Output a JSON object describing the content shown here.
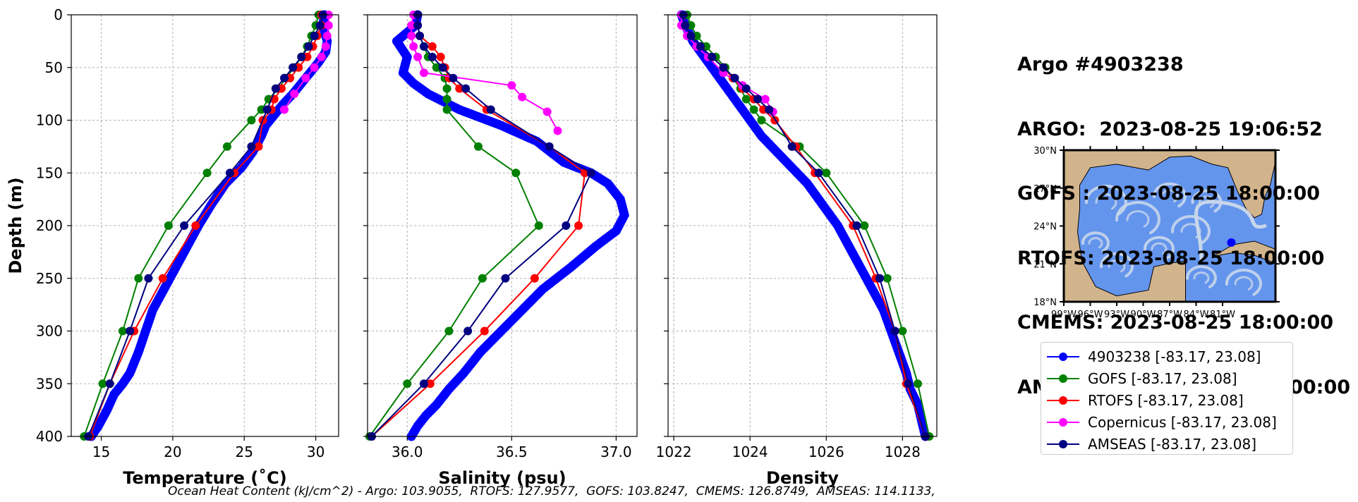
{
  "info": {
    "lines": [
      "Argo #4903238",
      "ARGO:  2023-08-25 19:06:52",
      "GOFS : 2023-08-25 18:00:00",
      "RTOFS: 2023-08-25 18:00:00",
      "CMEMS: 2023-08-25 18:00:00",
      "AMSEAS : 2023-08-25 18:00:00"
    ]
  },
  "ohc_text": "Ocean Heat Content (kJ/cm^2) - Argo: 103.9055,  RTOFS: 127.9577,  GOFS: 103.8247,  CMEMS: 126.8749,  AMSEAS: 114.1133,",
  "legend": [
    {
      "label": "4903238 [-83.17, 23.08]",
      "color": "#0000ff"
    },
    {
      "label": "GOFS [-83.17, 23.08]",
      "color": "#008000"
    },
    {
      "label": "RTOFS [-83.17, 23.08]",
      "color": "#ff0000"
    },
    {
      "label": "Copernicus [-83.17, 23.08]",
      "color": "#ff00ff"
    },
    {
      "label": "AMSEAS [-83.17, 23.08]",
      "color": "#000080"
    }
  ],
  "chart_data": [
    {
      "type": "line",
      "xlabel": "Temperature (˚C)",
      "ylabel": "Depth (m)",
      "xlim": [
        12.9,
        31.6
      ],
      "ylim": [
        400,
        0
      ],
      "xticks": [
        15,
        20,
        25,
        30
      ],
      "yticks": [
        0,
        50,
        100,
        150,
        200,
        250,
        300,
        350,
        400
      ],
      "grid": true,
      "series": [
        {
          "name": "4903238 [-83.17, 23.08]",
          "color": "#0000ff",
          "argo": true,
          "x": [
            30.6,
            30.5,
            30.8,
            30.7,
            30.2,
            29.6,
            29.0,
            28.4,
            27.7,
            27.1,
            26.5,
            26.2,
            25.6,
            24.8,
            23.7,
            22.7,
            21.8,
            21.0,
            20.2,
            19.4,
            18.6,
            18.1,
            17.6,
            17.0,
            16.5,
            15.9,
            15.4,
            14.8,
            14.3
          ],
          "y": [
            0,
            10,
            25,
            35,
            45,
            55,
            65,
            75,
            85,
            95,
            105,
            115,
            130,
            145,
            160,
            180,
            200,
            220,
            240,
            260,
            280,
            300,
            320,
            340,
            350,
            360,
            375,
            390,
            400
          ]
        },
        {
          "name": "GOFS [-83.17, 23.08]",
          "color": "#008000",
          "x": [
            30.2,
            30.0,
            29.7,
            29.4,
            29.0,
            28.5,
            27.9,
            27.4,
            26.7,
            26.2,
            25.5,
            23.8,
            22.4,
            19.7,
            17.6,
            16.5,
            15.1,
            13.8
          ],
          "y": [
            0,
            10,
            20,
            30,
            40,
            50,
            60,
            70,
            80,
            90,
            100,
            125,
            150,
            200,
            250,
            300,
            350,
            400
          ]
        },
        {
          "name": "RTOFS [-83.17, 23.08]",
          "color": "#ff0000",
          "x": [
            30.4,
            30.4,
            30.1,
            29.8,
            29.4,
            28.8,
            28.2,
            27.6,
            27.1,
            26.9,
            26.3,
            26.0,
            24.3,
            21.6,
            19.3,
            17.3,
            15.6,
            14.2
          ],
          "y": [
            0,
            10,
            20,
            30,
            40,
            50,
            60,
            70,
            80,
            90,
            100,
            125,
            150,
            200,
            250,
            300,
            350,
            400
          ]
        },
        {
          "name": "Copernicus [-83.17, 23.08]",
          "color": "#ff00ff",
          "x": [
            30.9,
            30.9,
            30.8,
            30.7,
            30.4,
            29.9,
            29.3,
            28.5,
            27.8
          ],
          "y": [
            0,
            10,
            20,
            30,
            40,
            50,
            60,
            75,
            90
          ]
        },
        {
          "name": "AMSEAS [-83.17, 23.08]",
          "color": "#000080",
          "x": [
            30.5,
            30.3,
            29.9,
            29.5,
            29.0,
            28.4,
            27.8,
            27.2,
            26.6,
            25.5,
            24.0,
            20.8,
            18.3,
            17.0,
            15.6,
            14.1
          ],
          "y": [
            0,
            10,
            20,
            30,
            40,
            50,
            60,
            70,
            90,
            125,
            150,
            200,
            250,
            300,
            350,
            400
          ]
        }
      ]
    },
    {
      "type": "line",
      "xlabel": "Salinity (psu)",
      "ylabel": "",
      "xlim": [
        35.81,
        37.1
      ],
      "ylim": [
        400,
        0
      ],
      "xticks": [
        36.0,
        36.5,
        37.0
      ],
      "yticks": [
        0,
        50,
        100,
        150,
        200,
        250,
        300,
        350,
        400
      ],
      "grid": true,
      "series": [
        {
          "name": "4903238 [-83.17, 23.08]",
          "color": "#0000ff",
          "argo": true,
          "x": [
            36.05,
            36.04,
            35.95,
            36.0,
            35.98,
            36.03,
            36.1,
            36.25,
            36.45,
            36.62,
            36.75,
            36.88,
            36.96,
            37.02,
            37.04,
            37.0,
            36.9,
            36.78,
            36.65,
            36.55,
            36.45,
            36.35,
            36.27,
            36.2,
            36.14,
            36.09,
            36.05,
            36.02
          ],
          "y": [
            0,
            10,
            25,
            40,
            55,
            65,
            75,
            90,
            105,
            120,
            140,
            150,
            160,
            175,
            190,
            205,
            220,
            240,
            260,
            280,
            300,
            320,
            340,
            355,
            370,
            380,
            390,
            400
          ]
        },
        {
          "name": "GOFS [-83.17, 23.08]",
          "color": "#008000",
          "x": [
            36.05,
            36.05,
            36.06,
            36.08,
            36.1,
            36.14,
            36.18,
            36.19,
            36.19,
            36.19,
            36.34,
            36.52,
            36.63,
            36.36,
            36.2,
            36.0,
            35.82
          ],
          "y": [
            0,
            10,
            20,
            30,
            40,
            50,
            60,
            70,
            80,
            90,
            125,
            150,
            200,
            250,
            300,
            350,
            400
          ]
        },
        {
          "name": "RTOFS [-83.17, 23.08]",
          "color": "#ff0000",
          "x": [
            36.05,
            36.05,
            36.06,
            36.12,
            36.16,
            36.18,
            36.2,
            36.25,
            36.38,
            36.68,
            36.85,
            36.82,
            36.61,
            36.37,
            36.11,
            35.83
          ],
          "y": [
            0,
            10,
            20,
            30,
            40,
            50,
            60,
            70,
            90,
            125,
            150,
            200,
            250,
            300,
            350,
            400
          ]
        },
        {
          "name": "Copernicus [-83.17, 23.08]",
          "color": "#ff00ff",
          "x": [
            36.03,
            36.02,
            36.02,
            36.03,
            36.05,
            36.08,
            36.5,
            36.55,
            36.67,
            36.72
          ],
          "y": [
            0,
            10,
            20,
            30,
            40,
            55,
            67,
            78,
            92,
            110
          ]
        },
        {
          "name": "AMSEAS [-83.17, 23.08]",
          "color": "#000080",
          "x": [
            36.05,
            36.05,
            36.06,
            36.08,
            36.12,
            36.17,
            36.22,
            36.28,
            36.4,
            36.68,
            36.88,
            36.76,
            36.47,
            36.29,
            36.08,
            35.83
          ],
          "y": [
            0,
            10,
            20,
            30,
            40,
            50,
            60,
            70,
            90,
            125,
            150,
            200,
            250,
            300,
            350,
            400
          ]
        }
      ]
    },
    {
      "type": "line",
      "xlabel": "Density",
      "ylabel": "",
      "xlim": [
        1021.85,
        1028.9
      ],
      "ylim": [
        400,
        0
      ],
      "xticks": [
        1022,
        1024,
        1026,
        1028
      ],
      "yticks": [
        0,
        50,
        100,
        150,
        200,
        250,
        300,
        350,
        400
      ],
      "grid": true,
      "series": [
        {
          "name": "4903238 [-83.17, 23.08]",
          "color": "#0000ff",
          "argo": true,
          "x": [
            1022.2,
            1022.3,
            1022.5,
            1022.8,
            1023.1,
            1023.4,
            1023.7,
            1024.0,
            1024.3,
            1024.7,
            1025.1,
            1025.5,
            1025.9,
            1026.3,
            1026.6,
            1026.9,
            1027.2,
            1027.5,
            1027.7,
            1027.9,
            1028.1,
            1028.2,
            1028.4,
            1028.5,
            1028.6
          ],
          "y": [
            0,
            10,
            25,
            40,
            55,
            70,
            85,
            100,
            115,
            130,
            145,
            160,
            180,
            200,
            220,
            240,
            260,
            280,
            300,
            320,
            340,
            355,
            370,
            385,
            400
          ]
        },
        {
          "name": "GOFS [-83.17, 23.08]",
          "color": "#008000",
          "x": [
            1022.35,
            1022.45,
            1022.6,
            1022.85,
            1023.1,
            1023.35,
            1023.55,
            1023.75,
            1023.9,
            1024.1,
            1024.3,
            1025.3,
            1026.0,
            1027.0,
            1027.6,
            1028.0,
            1028.4,
            1028.7
          ],
          "y": [
            0,
            10,
            20,
            30,
            40,
            50,
            60,
            70,
            80,
            90,
            100,
            125,
            150,
            200,
            250,
            300,
            350,
            400
          ]
        },
        {
          "name": "RTOFS [-83.17, 23.08]",
          "color": "#ff0000",
          "x": [
            1022.25,
            1022.3,
            1022.45,
            1022.7,
            1023.0,
            1023.3,
            1023.55,
            1023.8,
            1024.1,
            1024.35,
            1024.65,
            1025.2,
            1025.7,
            1026.7,
            1027.3,
            1027.8,
            1028.1,
            1028.6
          ],
          "y": [
            0,
            10,
            20,
            30,
            40,
            50,
            60,
            70,
            80,
            90,
            100,
            125,
            150,
            200,
            250,
            300,
            350,
            400
          ]
        },
        {
          "name": "Copernicus [-83.17, 23.08]",
          "color": "#ff00ff",
          "x": [
            1022.2,
            1022.2,
            1022.35,
            1022.6,
            1022.9,
            1023.3,
            1023.8,
            1024.4,
            1024.6
          ],
          "y": [
            0,
            10,
            20,
            30,
            40,
            55,
            67,
            80,
            92
          ]
        },
        {
          "name": "AMSEAS [-83.17, 23.08]",
          "color": "#000080",
          "x": [
            1022.25,
            1022.3,
            1022.45,
            1022.7,
            1023.0,
            1023.3,
            1023.6,
            1023.9,
            1024.2,
            1024.5,
            1025.1,
            1025.8,
            1026.8,
            1027.4,
            1027.8,
            1028.15,
            1028.6
          ],
          "y": [
            0,
            10,
            20,
            30,
            40,
            50,
            60,
            70,
            80,
            90,
            125,
            150,
            200,
            250,
            300,
            350,
            400
          ]
        }
      ]
    }
  ],
  "map": {
    "lat_ticks": [
      "30°N",
      "27°N",
      "24°N",
      "21°N",
      "18°N"
    ],
    "lon_ticks": [
      "99°W",
      "96°W",
      "93°W",
      "90°W",
      "87°W",
      "84°W",
      "81°W"
    ],
    "land_color": "#d2b48c",
    "ocean_color": "#6495ed",
    "streak_color": "#c8d6ea",
    "marker_color": "#0000ff",
    "marker": {
      "lon": -83.17,
      "lat": 23.08
    },
    "lon_range": [
      -99,
      -79
    ],
    "lat_range": [
      18,
      31
    ]
  }
}
